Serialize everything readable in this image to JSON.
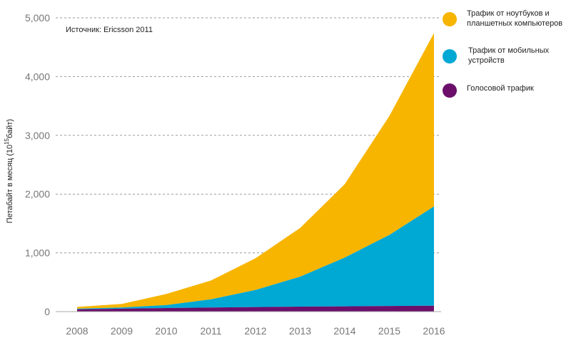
{
  "chart_data": {
    "type": "area",
    "stacked": true,
    "title": "",
    "source_note": "Источник: Ericsson 2011",
    "xlabel": "",
    "ylabel_main": "Петабайт в месяц (10",
    "ylabel_sup": "15",
    "ylabel_tail": "байт)",
    "x": [
      "2008",
      "2009",
      "2010",
      "2011",
      "2012",
      "2013",
      "2014",
      "2015",
      "2016"
    ],
    "yticks": [
      "0",
      "1,000",
      "2,000",
      "3,000",
      "4,000",
      "5,000"
    ],
    "ytick_values": [
      0,
      1000,
      2000,
      3000,
      4000,
      5000
    ],
    "ylim": [
      0,
      5000
    ],
    "grid": true,
    "legend_position": "top-right",
    "series": [
      {
        "name": "Голосовой трафик",
        "color": "#6b0f6b",
        "values": [
          40,
          50,
          60,
          70,
          78,
          85,
          90,
          95,
          100
        ]
      },
      {
        "name": "Трафик от мобильных устройств",
        "color": "#00a8d4",
        "values": [
          10,
          20,
          50,
          140,
          290,
          510,
          830,
          1210,
          1690
        ]
      },
      {
        "name": "Трафик от ноутбуков и планшетных компьютеров",
        "color": "#f7b500",
        "values": [
          30,
          60,
          190,
          320,
          540,
          830,
          1250,
          2025,
          2950
        ]
      }
    ],
    "legend": [
      {
        "label": "Трафик от ноутбуков и\nпланшетных компьютеров",
        "color": "#f7b500"
      },
      {
        "label": "Трафик от мобильных\nустройств",
        "color": "#00a8d4"
      },
      {
        "label": "Голосовой трафик",
        "color": "#6b0f6b"
      }
    ]
  }
}
